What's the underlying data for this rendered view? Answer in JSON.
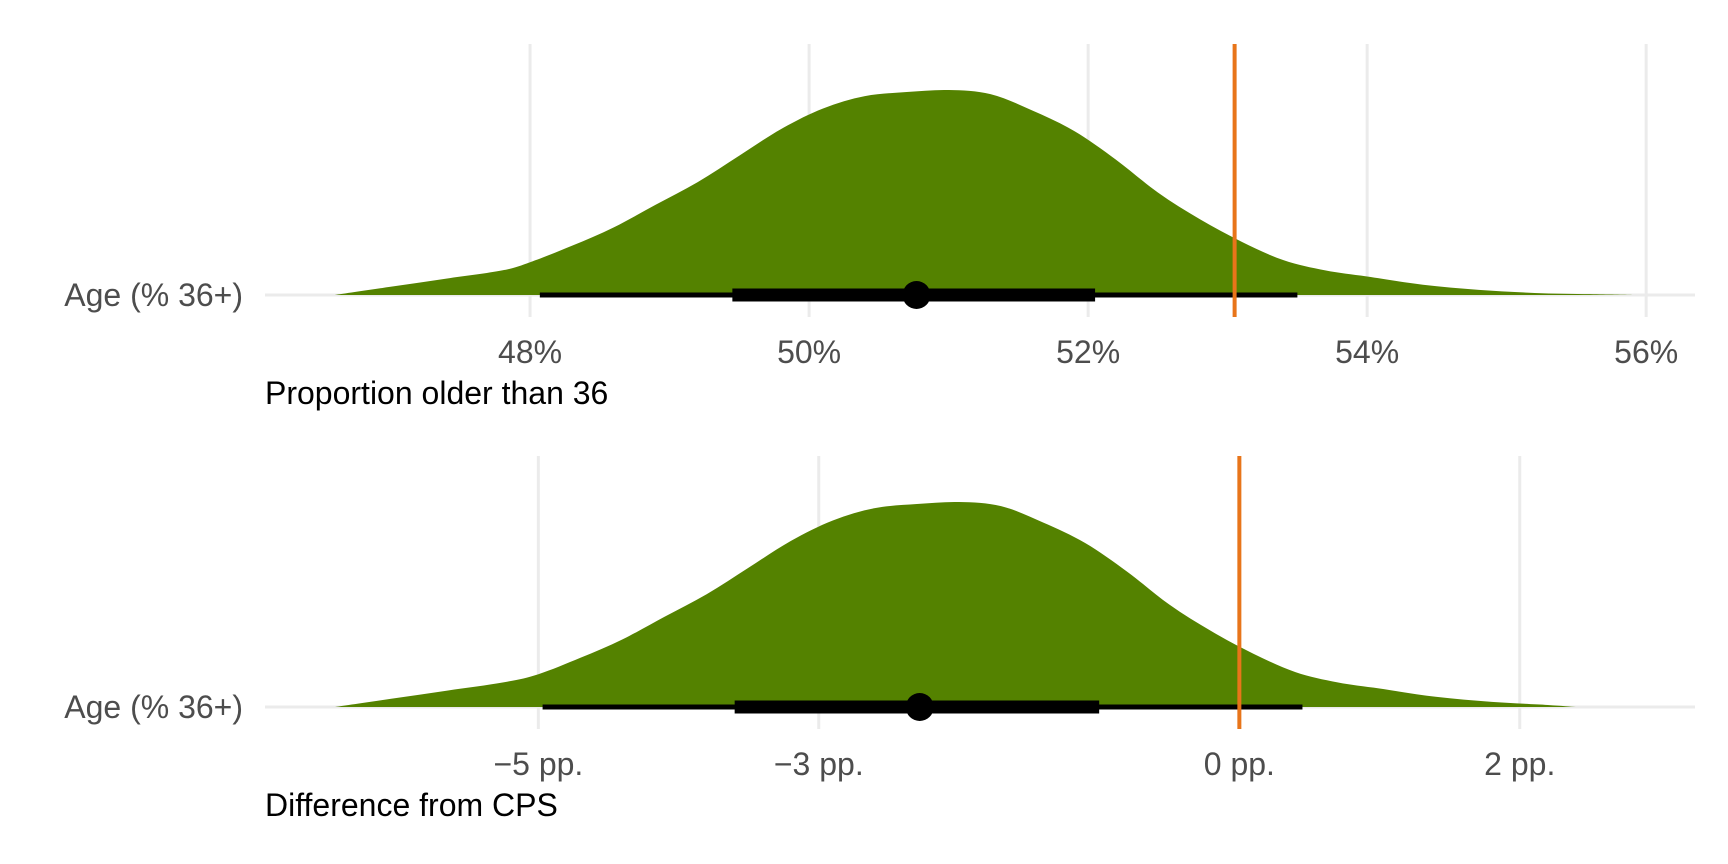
{
  "colors": {
    "density_fill": "#548200",
    "reference_line": "#e8751a",
    "grid": "#ebebeb",
    "interval": "#000000"
  },
  "chart_data": [
    {
      "type": "area",
      "category": "Age (% 36+)",
      "xlabel": "Proportion older than 36",
      "x_ticks": [
        48,
        50,
        52,
        54,
        56
      ],
      "x_tick_labels": [
        "48%",
        "50%",
        "52%",
        "54%",
        "56%"
      ],
      "xlim": [
        46.1,
        56.35
      ],
      "reference_line": 53.05,
      "point_estimate": 50.77,
      "interval_66": [
        49.45,
        52.05
      ],
      "interval_95": [
        48.07,
        53.5
      ],
      "density": {
        "x": [
          46.6,
          47.0,
          47.4,
          47.8,
          48.0,
          48.3,
          48.6,
          48.9,
          49.2,
          49.5,
          49.8,
          50.1,
          50.4,
          50.7,
          51.0,
          51.3,
          51.6,
          51.9,
          52.2,
          52.5,
          52.8,
          53.1,
          53.4,
          53.7,
          54.0,
          54.4,
          54.8,
          55.2,
          55.6,
          55.9
        ],
        "y": [
          0.0,
          0.04,
          0.08,
          0.12,
          0.16,
          0.24,
          0.33,
          0.44,
          0.55,
          0.68,
          0.81,
          0.91,
          0.97,
          0.99,
          1.0,
          0.98,
          0.9,
          0.8,
          0.66,
          0.5,
          0.37,
          0.26,
          0.17,
          0.12,
          0.09,
          0.05,
          0.025,
          0.01,
          0.004,
          0.0
        ]
      }
    },
    {
      "type": "area",
      "category": "Age (% 36+)",
      "xlabel": "Difference from CPS",
      "x_ticks": [
        -5,
        -3,
        0,
        2
      ],
      "x_tick_labels": [
        "−5 pp.",
        "−3 pp.",
        "0 pp.",
        "2 pp."
      ],
      "xlim": [
        -6.95,
        3.25
      ],
      "reference_line": 0,
      "point_estimate": -2.28,
      "interval_66": [
        -3.6,
        -1.0
      ],
      "interval_95": [
        -4.97,
        0.45
      ],
      "density": {
        "x": [
          -6.45,
          -6.05,
          -5.65,
          -5.25,
          -5.0,
          -4.7,
          -4.4,
          -4.1,
          -3.8,
          -3.5,
          -3.2,
          -2.9,
          -2.6,
          -2.3,
          -2.0,
          -1.7,
          -1.4,
          -1.1,
          -0.8,
          -0.5,
          -0.2,
          0.1,
          0.4,
          0.7,
          1.0,
          1.4,
          1.8,
          2.2,
          2.4
        ],
        "y": [
          0.0,
          0.04,
          0.08,
          0.12,
          0.16,
          0.24,
          0.33,
          0.44,
          0.55,
          0.68,
          0.81,
          0.91,
          0.97,
          0.99,
          1.0,
          0.98,
          0.9,
          0.8,
          0.66,
          0.5,
          0.37,
          0.26,
          0.17,
          0.12,
          0.09,
          0.05,
          0.025,
          0.01,
          0.0
        ]
      }
    }
  ]
}
